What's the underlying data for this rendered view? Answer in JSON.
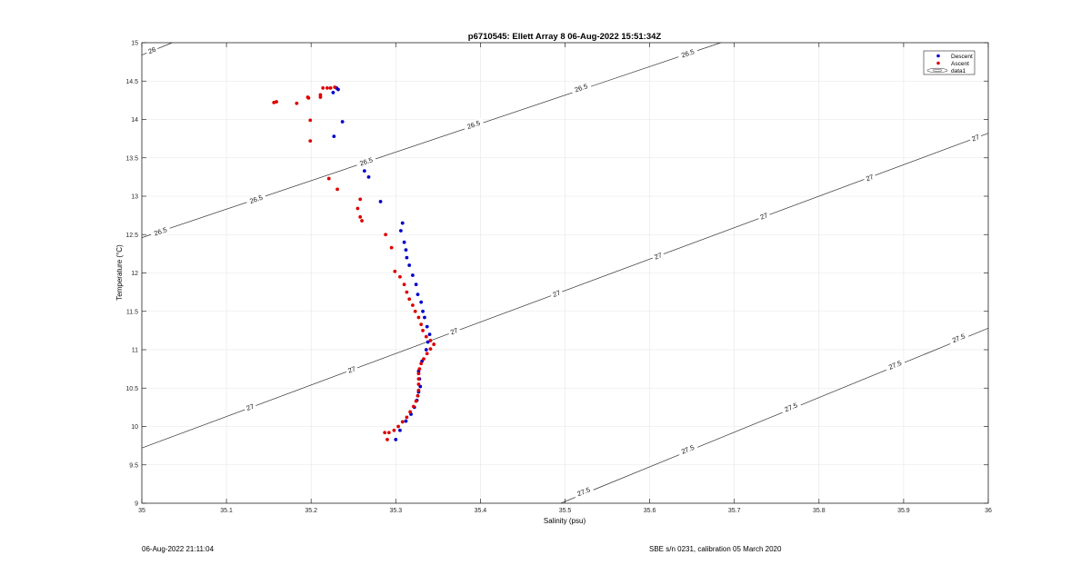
{
  "chart_data": {
    "type": "scatter",
    "title": "p6710545: Ellett Array 8 06-Aug-2022 15:51:34Z",
    "xlabel": "Salinity (psu)",
    "ylabel": "Temperature (°C)",
    "xlim": [
      35,
      36
    ],
    "ylim": [
      9,
      15
    ],
    "xticks": [
      35,
      35.1,
      35.2,
      35.3,
      35.4,
      35.5,
      35.6,
      35.7,
      35.8,
      35.9,
      36
    ],
    "xtick_labels": [
      "35",
      "35.1",
      "35.2",
      "35.3",
      "35.4",
      "35.5",
      "35.6",
      "35.7",
      "35.8",
      "35.9",
      "36"
    ],
    "yticks": [
      9,
      9.5,
      10,
      10.5,
      11,
      11.5,
      12,
      12.5,
      13,
      13.5,
      14,
      14.5,
      15
    ],
    "ytick_labels": [
      "9",
      "9.5",
      "10",
      "10.5",
      "11",
      "11.5",
      "12",
      "12.5",
      "13",
      "13.5",
      "14",
      "14.5",
      "15"
    ],
    "grid": true,
    "legend_position": "top-right",
    "legend": [
      "Descent",
      "Ascent",
      "data1"
    ],
    "series": [
      {
        "name": "Descent",
        "color": "#0000cc",
        "points": [
          [
            35.3,
            9.83
          ],
          [
            35.305,
            9.95
          ],
          [
            35.312,
            10.07
          ],
          [
            35.318,
            10.16
          ],
          [
            35.322,
            10.25
          ],
          [
            35.325,
            10.34
          ],
          [
            35.327,
            10.45
          ],
          [
            35.329,
            10.52
          ],
          [
            35.328,
            10.62
          ],
          [
            35.327,
            10.72
          ],
          [
            35.331,
            10.85
          ],
          [
            35.336,
            11.0
          ],
          [
            35.338,
            11.1
          ],
          [
            35.34,
            11.2
          ],
          [
            35.337,
            11.3
          ],
          [
            35.334,
            11.42
          ],
          [
            35.332,
            11.5
          ],
          [
            35.33,
            11.62
          ],
          [
            35.326,
            11.72
          ],
          [
            35.324,
            11.85
          ],
          [
            35.32,
            11.97
          ],
          [
            35.316,
            12.1
          ],
          [
            35.313,
            12.2
          ],
          [
            35.312,
            12.3
          ],
          [
            35.31,
            12.4
          ],
          [
            35.306,
            12.55
          ],
          [
            35.308,
            12.65
          ],
          [
            35.282,
            12.93
          ],
          [
            35.268,
            13.25
          ],
          [
            35.263,
            13.33
          ],
          [
            35.227,
            13.78
          ],
          [
            35.237,
            13.97
          ],
          [
            35.226,
            14.35
          ],
          [
            35.23,
            14.41
          ],
          [
            35.232,
            14.39
          ]
        ]
      },
      {
        "name": "Ascent",
        "color": "#dd0000",
        "points": [
          [
            35.29,
            9.83
          ],
          [
            35.287,
            9.92
          ],
          [
            35.292,
            9.92
          ],
          [
            35.298,
            9.95
          ],
          [
            35.303,
            10.0
          ],
          [
            35.308,
            10.06
          ],
          [
            35.313,
            10.12
          ],
          [
            35.317,
            10.19
          ],
          [
            35.321,
            10.26
          ],
          [
            35.324,
            10.33
          ],
          [
            35.326,
            10.4
          ],
          [
            35.327,
            10.47
          ],
          [
            35.327,
            10.55
          ],
          [
            35.327,
            10.62
          ],
          [
            35.327,
            10.69
          ],
          [
            35.328,
            10.75
          ],
          [
            35.33,
            10.82
          ],
          [
            35.333,
            10.88
          ],
          [
            35.337,
            10.95
          ],
          [
            35.341,
            11.01
          ],
          [
            35.345,
            11.07
          ],
          [
            35.341,
            11.12
          ],
          [
            35.336,
            11.17
          ],
          [
            35.332,
            11.25
          ],
          [
            35.33,
            11.33
          ],
          [
            35.327,
            11.42
          ],
          [
            35.323,
            11.5
          ],
          [
            35.32,
            11.58
          ],
          [
            35.316,
            11.66
          ],
          [
            35.313,
            11.75
          ],
          [
            35.31,
            11.85
          ],
          [
            35.305,
            11.95
          ],
          [
            35.299,
            12.02
          ],
          [
            35.295,
            12.33
          ],
          [
            35.288,
            12.5
          ],
          [
            35.26,
            12.68
          ],
          [
            35.258,
            12.73
          ],
          [
            35.255,
            12.84
          ],
          [
            35.258,
            12.96
          ],
          [
            35.231,
            13.09
          ],
          [
            35.221,
            13.23
          ],
          [
            35.199,
            13.72
          ],
          [
            35.199,
            13.99
          ],
          [
            35.183,
            14.21
          ],
          [
            35.156,
            14.22
          ],
          [
            35.159,
            14.23
          ],
          [
            35.196,
            14.29
          ],
          [
            35.197,
            14.28
          ],
          [
            35.211,
            14.29
          ],
          [
            35.211,
            14.32
          ],
          [
            35.214,
            14.41
          ],
          [
            35.219,
            14.41
          ],
          [
            35.223,
            14.41
          ],
          [
            35.228,
            14.42
          ]
        ]
      }
    ],
    "contours": [
      {
        "label": "26",
        "points": [
          [
            35,
            14.84
          ],
          [
            35.036,
            15
          ]
        ],
        "label_positions": [
          [
            35.012,
            14.9
          ]
        ]
      },
      {
        "label": "26.5",
        "points": [
          [
            35,
            12.46
          ],
          [
            35.684,
            15
          ]
        ],
        "label_positions": [
          [
            35.022,
            12.54
          ],
          [
            35.135,
            12.96
          ],
          [
            35.265,
            13.45
          ],
          [
            35.392,
            13.93
          ],
          [
            35.519,
            14.41
          ],
          [
            35.645,
            14.86
          ]
        ]
      },
      {
        "label": "27",
        "points": [
          [
            35,
            9.72
          ],
          [
            36,
            13.82
          ]
        ],
        "label_positions": [
          [
            35.128,
            10.25
          ],
          [
            35.248,
            10.74
          ],
          [
            35.369,
            11.24
          ],
          [
            35.49,
            11.73
          ],
          [
            35.61,
            12.22
          ],
          [
            35.735,
            12.74
          ],
          [
            35.86,
            13.24
          ],
          [
            35.985,
            13.76
          ]
        ]
      },
      {
        "label": "27.5",
        "points": [
          [
            35.495,
            9
          ],
          [
            36,
            11.28
          ]
        ],
        "label_positions": [
          [
            35.522,
            9.15
          ],
          [
            35.645,
            9.7
          ],
          [
            35.767,
            10.25
          ],
          [
            35.89,
            10.8
          ],
          [
            35.965,
            11.15
          ]
        ]
      }
    ]
  },
  "footer": {
    "left": "06-Aug-2022 21:11:04",
    "right": "SBE s/n 0231, calibration 05 March 2020"
  }
}
